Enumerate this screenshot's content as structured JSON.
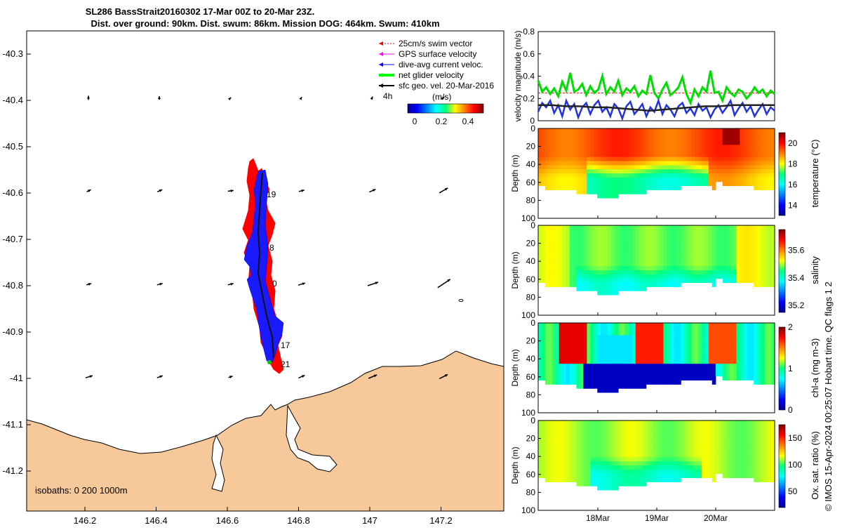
{
  "header": {
    "title_line1": "SL286 BassStrait20160302 17-Mar 00Z to 20-Mar 23Z.",
    "title_line2": "Dist. over ground: 90km. Dist. swum: 86km. Mission DOG: 464km. Swum: 410km"
  },
  "map": {
    "yticks": [
      "-40.3",
      "-40.4",
      "-40.5",
      "-40.6",
      "-40.7",
      "-40.8",
      "-40.9",
      "-41",
      "-41.1",
      "-41.2"
    ],
    "xticks": [
      "146.2",
      "146.4",
      "146.6",
      "146.8",
      "147",
      "147.2"
    ],
    "legend": [
      {
        "label": "25cm/s swim vector",
        "color": "#ff0000"
      },
      {
        "label": "GPS surface velocity",
        "color": "#ff00ff"
      },
      {
        "label": "dive-avg current veloc.",
        "color": "#0000ff"
      },
      {
        "label": "net glider velocity",
        "color": "#00ff00"
      },
      {
        "label": "sfc geo. vel. 20-Mar-2016",
        "color": "#000000"
      }
    ],
    "colorbar": {
      "label": "(m/s)",
      "tick_labels": [
        "0",
        "0.2",
        "0.4"
      ],
      "corner_label": "4h"
    },
    "track_labels": [
      "19",
      "8",
      "0",
      "17",
      "21"
    ],
    "isobaths_label": "isobaths: 0   200  1000m",
    "land_color": "#f7c99a"
  },
  "chart_data": [
    {
      "type": "line",
      "ylabel": "velocity magnitude (m/s)",
      "ylim": [
        0,
        0.8
      ],
      "yticks": [
        "0",
        "0.2",
        "0.4",
        "0.6",
        "0.8"
      ],
      "reference_line": 0.25,
      "series": [
        {
          "name": "net glider velocity",
          "color": "#00dd00",
          "values": [
            0.36,
            0.26,
            0.3,
            0.24,
            0.29,
            0.22,
            0.35,
            0.27,
            0.43,
            0.26,
            0.28,
            0.33,
            0.23,
            0.31,
            0.25,
            0.28,
            0.4,
            0.24,
            0.3,
            0.26,
            0.36,
            0.23,
            0.29,
            0.26,
            0.31,
            0.22,
            0.27,
            0.24,
            0.41,
            0.25,
            0.2,
            0.28,
            0.34,
            0.23,
            0.26,
            0.3,
            0.39,
            0.24,
            0.16,
            0.28,
            0.22,
            0.3,
            0.26,
            0.45,
            0.25,
            0.26,
            0.18,
            0.3,
            0.25,
            0.22,
            0.28,
            0.26,
            0.2,
            0.24,
            0.3,
            0.25,
            0.28,
            0.22,
            0.27,
            0.24
          ]
        },
        {
          "name": "dive-avg current veloc.",
          "color": "#2233dd",
          "values": [
            0.08,
            0.16,
            0.12,
            0.18,
            0.07,
            0.14,
            0.04,
            0.18,
            0.1,
            0.15,
            0.03,
            0.12,
            0.16,
            0.06,
            0.14,
            0.18,
            0.08,
            0.12,
            0.04,
            0.15,
            0.11,
            0.02,
            0.13,
            0.17,
            0.06,
            0.1,
            0.15,
            0.04,
            0.12,
            0.08,
            0.18,
            0.06,
            0.14,
            0.1,
            0.04,
            0.13,
            0.16,
            0.07,
            0.11,
            0.05,
            0.15,
            0.09,
            0.12,
            0.03,
            0.1,
            0.14,
            0.07,
            0.12,
            0.18,
            0.05,
            0.11,
            0.16,
            0.08,
            0.13,
            0.04,
            0.1,
            0.15,
            0.06,
            0.12,
            0.09
          ]
        },
        {
          "name": "sfc geo. vel. 20-Mar-2016",
          "color": "#222222",
          "values": [
            0.14,
            0.14,
            0.13,
            0.13,
            0.12,
            0.12,
            0.11,
            0.1,
            0.09,
            0.1,
            0.11,
            0.12,
            0.13,
            0.13,
            0.14,
            0.14,
            0.14,
            0.14
          ]
        }
      ]
    },
    {
      "type": "heatmap",
      "ylabel": "Depth (m)",
      "colorbar_label": "temperature (°C)",
      "colorbar_ticks": [
        "20",
        "18",
        "16",
        "14"
      ],
      "range": [
        13,
        21
      ],
      "ylim": [
        0,
        100
      ],
      "yticks": [
        "0",
        "20",
        "40",
        "60",
        "80",
        "100"
      ]
    },
    {
      "type": "heatmap",
      "ylabel": "Depth (m)",
      "colorbar_label": "salinity",
      "colorbar_ticks": [
        "35.6",
        "35.4",
        "35.2"
      ],
      "range": [
        35.15,
        35.75
      ],
      "ylim": [
        0,
        100
      ],
      "yticks": [
        "0",
        "20",
        "40",
        "60",
        "80",
        "100"
      ]
    },
    {
      "type": "heatmap",
      "ylabel": "Depth (m)",
      "colorbar_label": "chl-a (mg m-3)",
      "colorbar_ticks": [
        "2",
        "1",
        "0"
      ],
      "range": [
        0,
        2
      ],
      "ylim": [
        0,
        100
      ],
      "yticks": [
        "0",
        "20",
        "40",
        "60",
        "80",
        "100"
      ]
    },
    {
      "type": "heatmap",
      "ylabel": "Depth (m)",
      "colorbar_label": "Ox. sat. ratio (%)",
      "colorbar_ticks": [
        "150",
        "100",
        "50"
      ],
      "range": [
        20,
        175
      ],
      "ylim": [
        0,
        100
      ],
      "yticks": [
        "0",
        "20",
        "40",
        "60",
        "80",
        "100"
      ],
      "xticks": [
        "18Mar",
        "19Mar",
        "20Mar"
      ]
    }
  ],
  "side_note": "© IMOS 15-Apr-2024 00:25:07 Hobart time. QC flags 1  2"
}
